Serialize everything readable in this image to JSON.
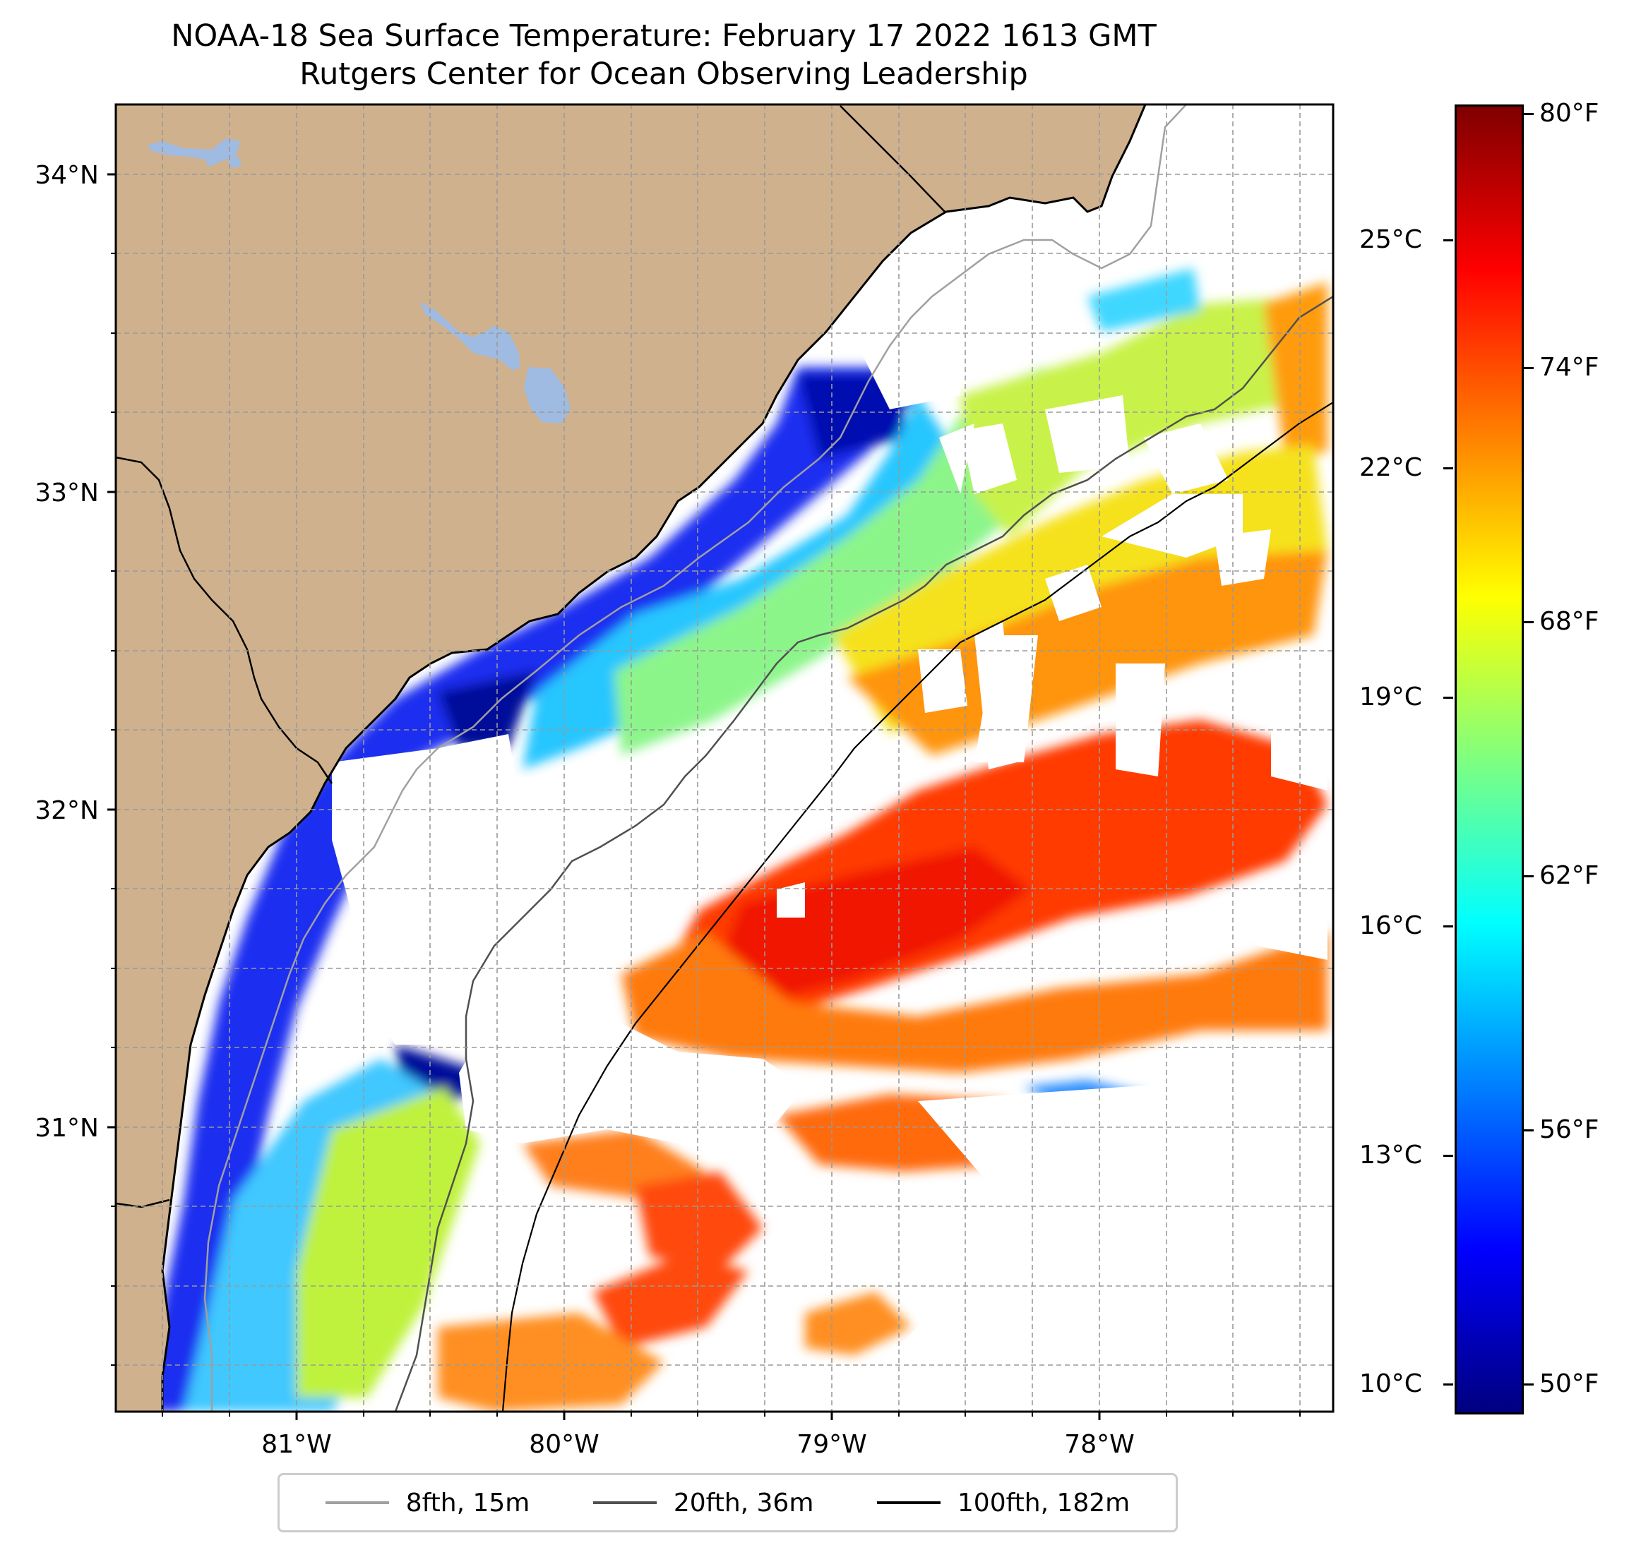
{
  "title": {
    "line1": "NOAA-18 Sea Surface Temperature: February 17 2022 1613 GMT",
    "line2": "Rutgers Center for Ocean Observing Leadership"
  },
  "map": {
    "lon_range": [
      -81.68,
      -77.15
    ],
    "lat_range": [
      30.12,
      34.22
    ],
    "lon_ticks": [
      "81°W",
      "80°W",
      "79°W",
      "78°W"
    ],
    "lat_ticks": [
      "34°N",
      "33°N",
      "32°N",
      "31°N"
    ],
    "gridlines": "dashed",
    "land_color": "#cfb18d",
    "lake_color": "#9fbbe2",
    "ocean_color": "#ffffff",
    "colormap": "jet",
    "isobath_colors": {
      "8fth": "#a0a0a0",
      "20fth": "#505050",
      "100fth": "#000000"
    }
  },
  "colorbar": {
    "celsius_ticks": [
      "25°C",
      "22°C",
      "19°C",
      "16°C",
      "13°C",
      "10°C"
    ],
    "fahrenheit_ticks": [
      "80°F",
      "74°F",
      "68°F",
      "62°F",
      "56°F",
      "50°F"
    ]
  },
  "legend": {
    "items": [
      {
        "label": "8fth, 15m",
        "color": "#a0a0a0"
      },
      {
        "label": "20fth, 36m",
        "color": "#505050"
      },
      {
        "label": "100fth, 182m",
        "color": "#000000"
      }
    ]
  }
}
